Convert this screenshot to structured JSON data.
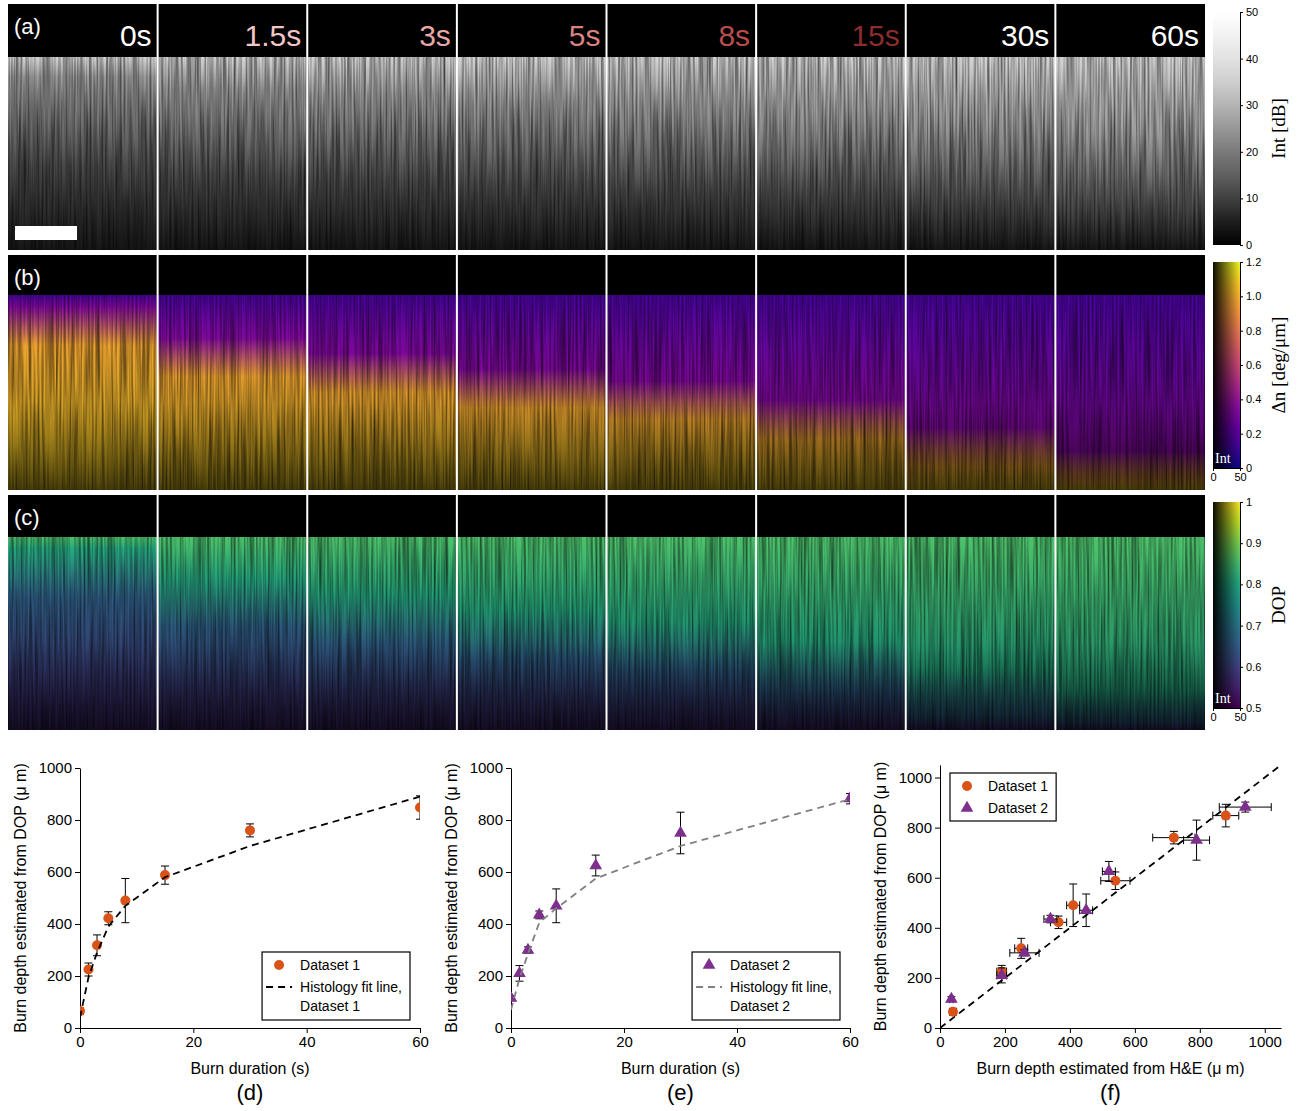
{
  "image_panels": {
    "times": [
      "0s",
      "1.5s",
      "3s",
      "5s",
      "8s",
      "15s",
      "30s",
      "60s"
    ],
    "colors": [
      "#ffffff",
      "#f2c6c6",
      "#e8a8a8",
      "#d98282",
      "#b84c4c",
      "#8c2c2c",
      "#ffffff",
      "#ffffff"
    ],
    "rows": [
      {
        "letter": "(a)",
        "colorbar": {
          "label": "Int [dB]",
          "ylim": [
            0,
            50
          ],
          "yticks": [
            0,
            10,
            20,
            30,
            40,
            50
          ]
        }
      },
      {
        "letter": "(b)",
        "colorbar": {
          "label": "Δn [deg/μm]",
          "ylim": [
            0,
            1.2
          ],
          "yticks": [
            0,
            0.2,
            0.4,
            0.6,
            0.8,
            {
              "value": 1,
              "label": "1.0"
            },
            1.2
          ],
          "x_label": "Int",
          "xlim": [
            0,
            50
          ],
          "xticks": [
            0,
            50
          ]
        }
      },
      {
        "letter": "(c)",
        "colorbar": {
          "label": "DOP",
          "ylim": [
            0.5,
            1
          ],
          "yticks": [
            0.5,
            0.6,
            0.7,
            0.8,
            0.9,
            1
          ],
          "x_label": "Int",
          "xlim": [
            0,
            50
          ],
          "xticks": [
            0,
            50
          ]
        }
      }
    ]
  },
  "chart_data": [
    {
      "type": "scatter",
      "panel_label": "(d)",
      "xlabel": "Burn duration (s)",
      "ylabel": "Burn depth estimated from DOP (μ m)",
      "xlim": [
        0,
        60
      ],
      "xticks": [
        0,
        20,
        40,
        60
      ],
      "ylim": [
        0,
        1000
      ],
      "yticks": [
        0,
        200,
        400,
        600,
        800,
        1000
      ],
      "legend": "lower right",
      "series": [
        {
          "name": "Dataset 1",
          "type": "scatter",
          "marker": "circle",
          "color": "#d95319",
          "x": [
            0,
            1.5,
            3,
            5,
            8,
            15,
            30,
            60
          ],
          "values": [
            65,
            225,
            318,
            422,
            490,
            588,
            760,
            848
          ],
          "errors": [
            12,
            25,
            40,
            25,
            85,
            35,
            25,
            45
          ]
        },
        {
          "name": "Histology fit line, Dataset 1",
          "type": "line",
          "line_style": "dashed",
          "color": "#000000",
          "x": [
            0,
            1.5,
            3,
            5,
            8,
            15,
            30,
            60
          ],
          "values": [
            40,
            195,
            290,
            390,
            470,
            580,
            700,
            890
          ]
        }
      ]
    },
    {
      "type": "scatter",
      "panel_label": "(e)",
      "xlabel": "Burn duration (s)",
      "ylabel": "Burn depth estimated from DOP (μ m)",
      "xlim": [
        0,
        60
      ],
      "xticks": [
        0,
        20,
        40,
        60
      ],
      "ylim": [
        0,
        1000
      ],
      "yticks": [
        0,
        200,
        400,
        600,
        800,
        1000
      ],
      "legend": "lower right",
      "series": [
        {
          "name": "Dataset 2",
          "type": "scatter",
          "marker": "triangle",
          "color": "#7e2f8e",
          "x": [
            0,
            1.5,
            3,
            5,
            8,
            15,
            30,
            60
          ],
          "values": [
            115,
            210,
            300,
            435,
            470,
            625,
            750,
            882
          ],
          "errors": [
            10,
            30,
            12,
            15,
            65,
            40,
            80,
            20
          ]
        },
        {
          "name": "Histology fit line, Dataset 2",
          "type": "line",
          "line_style": "dashed",
          "color": "#808080",
          "x": [
            0,
            1.5,
            3,
            5,
            8,
            15,
            30,
            60
          ],
          "values": [
            70,
            190,
            285,
            405,
            460,
            575,
            700,
            880
          ]
        }
      ]
    },
    {
      "type": "scatter",
      "panel_label": "(f)",
      "xlabel": "Burn depth estimated from H&E (μ m)",
      "ylabel": "Burn depth estimated from DOP (μ m)",
      "xlim": [
        0,
        1050
      ],
      "xticks": [
        0,
        200,
        400,
        600,
        800,
        1000
      ],
      "ylim": [
        0,
        1050
      ],
      "yticks": [
        0,
        200,
        400,
        600,
        800,
        1000
      ],
      "legend": "upper left",
      "series": [
        {
          "type": "line",
          "line_style": "dashed",
          "color": "#000000",
          "x": [
            0,
            1050
          ],
          "values": [
            0,
            1050
          ]
        },
        {
          "name": "Dataset 1",
          "type": "scatter",
          "marker": "circle",
          "color": "#d95319",
          "x": [
            40,
            190,
            250,
            365,
            410,
            540,
            720,
            880
          ],
          "values": [
            65,
            225,
            318,
            422,
            490,
            588,
            760,
            848
          ],
          "errors": [
            12,
            25,
            40,
            25,
            85,
            35,
            25,
            45
          ],
          "x_errors": [
            10,
            15,
            20,
            25,
            20,
            45,
            65,
            40
          ]
        },
        {
          "name": "Dataset 2",
          "type": "scatter",
          "marker": "triangle",
          "color": "#7e2f8e",
          "x": [
            35,
            190,
            260,
            340,
            450,
            520,
            790,
            940
          ],
          "values": [
            115,
            210,
            300,
            435,
            470,
            625,
            750,
            882
          ],
          "errors": [
            10,
            30,
            12,
            15,
            65,
            40,
            80,
            20
          ],
          "x_errors": [
            5,
            15,
            45,
            20,
            20,
            20,
            40,
            80
          ]
        }
      ]
    }
  ]
}
